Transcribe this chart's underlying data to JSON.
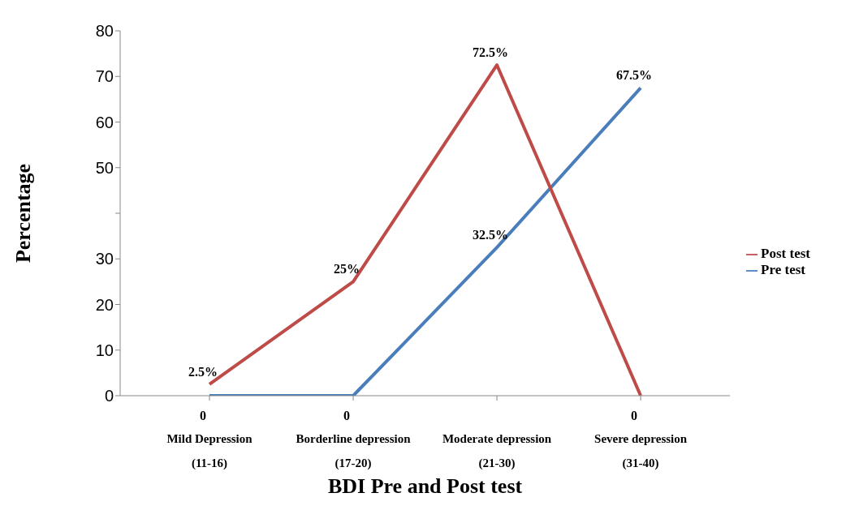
{
  "chart_data": {
    "type": "line",
    "xlabel": "BDI Pre and Post test",
    "ylabel": "Percentage",
    "categories": [
      "Mild Depression\n(11-16)",
      "Borderline depression\n(17-20)",
      "Moderate depression\n(21-30)",
      "Severe depression\n(31-40)"
    ],
    "series": [
      {
        "name": "Pre test",
        "color": "#4a7ebb",
        "values": [
          0,
          0,
          32.5,
          67.5
        ],
        "value_labels": [
          "0",
          "0",
          "32.5%",
          "67.5%"
        ]
      },
      {
        "name": "Post test",
        "color": "#be4b48",
        "values": [
          2.5,
          25,
          72.5,
          0
        ],
        "value_labels": [
          "2.5%",
          "25%",
          "72.5%",
          "0"
        ]
      }
    ],
    "ylim": [
      0,
      80
    ],
    "yticks": [
      0,
      10,
      20,
      30,
      {
        "value": 40,
        "label": null
      },
      50,
      60,
      70,
      80
    ],
    "grid": false,
    "legend": "right",
    "marker": "none"
  }
}
